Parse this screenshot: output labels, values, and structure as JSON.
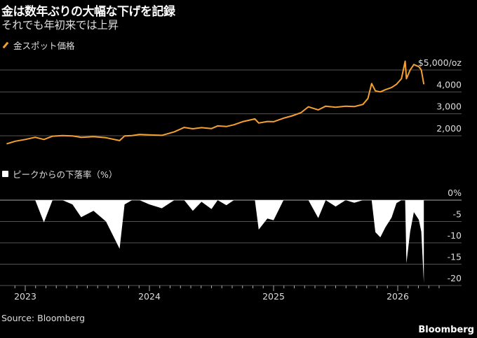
{
  "title": "金は数年ぶりの大幅な下げを記録",
  "subtitle": "それでも年初来では上昇",
  "source": "Source: Bloomberg",
  "brand": "Bloomberg",
  "colors": {
    "price": "#f5a031",
    "drawdown": "#ffffff",
    "grid": "#555555",
    "background": "#000000"
  },
  "chart_data": [
    {
      "type": "line",
      "legend": "金スポット価格",
      "ylabel": "",
      "ylim": [
        1500,
        5500
      ],
      "yticks": [
        5000,
        4000,
        3000,
        2000
      ],
      "ytick_labels": [
        "$5,000/oz",
        "4,000",
        "3,000",
        "2,000"
      ],
      "x": [
        2022.85,
        2022.92,
        2023.0,
        2023.08,
        2023.15,
        2023.22,
        2023.3,
        2023.38,
        2023.45,
        2023.55,
        2023.65,
        2023.76,
        2023.8,
        2023.86,
        2023.92,
        2024.0,
        2024.1,
        2024.2,
        2024.28,
        2024.35,
        2024.42,
        2024.5,
        2024.55,
        2024.62,
        2024.68,
        2024.75,
        2024.82,
        2024.85,
        2024.88,
        2024.95,
        2025.0,
        2025.08,
        2025.15,
        2025.22,
        2025.28,
        2025.32,
        2025.36,
        2025.42,
        2025.5,
        2025.58,
        2025.65,
        2025.72,
        2025.76,
        2025.79,
        2025.82,
        2025.86,
        2025.9,
        2025.95,
        2025.99,
        2026.03,
        2026.06,
        2026.07,
        2026.1,
        2026.13,
        2026.17,
        2026.19,
        2026.21
      ],
      "values": [
        1630,
        1750,
        1830,
        1930,
        1830,
        1980,
        2010,
        1990,
        1930,
        1960,
        1910,
        1780,
        1990,
        2010,
        2060,
        2040,
        2020,
        2180,
        2380,
        2320,
        2370,
        2330,
        2450,
        2420,
        2500,
        2640,
        2730,
        2770,
        2580,
        2650,
        2640,
        2800,
        2910,
        3050,
        3320,
        3250,
        3180,
        3350,
        3300,
        3350,
        3330,
        3430,
        3700,
        4380,
        4050,
        4000,
        4100,
        4200,
        4350,
        4600,
        5400,
        4600,
        5000,
        5250,
        5150,
        5000,
        4350
      ]
    },
    {
      "type": "area",
      "legend": "ピークからの下落率（%）",
      "ylim": [
        -20,
        0
      ],
      "yticks": [
        0,
        -5,
        -10,
        -15,
        -20
      ],
      "ytick_labels": [
        "0%",
        "-5",
        "-10",
        "-15",
        "-20"
      ],
      "x": [
        2022.85,
        2022.92,
        2023.0,
        2023.08,
        2023.15,
        2023.22,
        2023.3,
        2023.38,
        2023.45,
        2023.55,
        2023.65,
        2023.76,
        2023.8,
        2023.86,
        2023.92,
        2024.0,
        2024.1,
        2024.2,
        2024.28,
        2024.35,
        2024.42,
        2024.5,
        2024.55,
        2024.62,
        2024.68,
        2024.75,
        2024.82,
        2024.85,
        2024.88,
        2024.95,
        2025.0,
        2025.08,
        2025.15,
        2025.22,
        2025.28,
        2025.32,
        2025.36,
        2025.42,
        2025.5,
        2025.58,
        2025.65,
        2025.72,
        2025.76,
        2025.79,
        2025.82,
        2025.86,
        2025.9,
        2025.95,
        2025.99,
        2026.03,
        2026.06,
        2026.07,
        2026.1,
        2026.13,
        2026.17,
        2026.19,
        2026.21
      ],
      "values": [
        0,
        0,
        0,
        0,
        -5.2,
        0,
        0,
        -1.0,
        -4.0,
        -2.5,
        -5.0,
        -11.4,
        -1.0,
        0,
        0,
        -1.0,
        -1.9,
        0,
        0,
        -2.5,
        -0.4,
        -2.1,
        0,
        -1.2,
        0,
        0,
        0,
        0,
        -6.9,
        -4.3,
        -4.7,
        0,
        0,
        0,
        0,
        -2.1,
        -4.2,
        0,
        -1.5,
        0,
        -0.6,
        0,
        0,
        0,
        -7.5,
        -8.7,
        -6.4,
        -4.1,
        -0.7,
        0,
        0,
        -14.8,
        -7.4,
        -2.8,
        -4.6,
        -7.4,
        -19.4
      ]
    }
  ],
  "x_axis": {
    "tick_labels": [
      "2023",
      "2024",
      "2025",
      "2026"
    ],
    "tick_years": [
      2023,
      2024,
      2025,
      2026
    ]
  }
}
